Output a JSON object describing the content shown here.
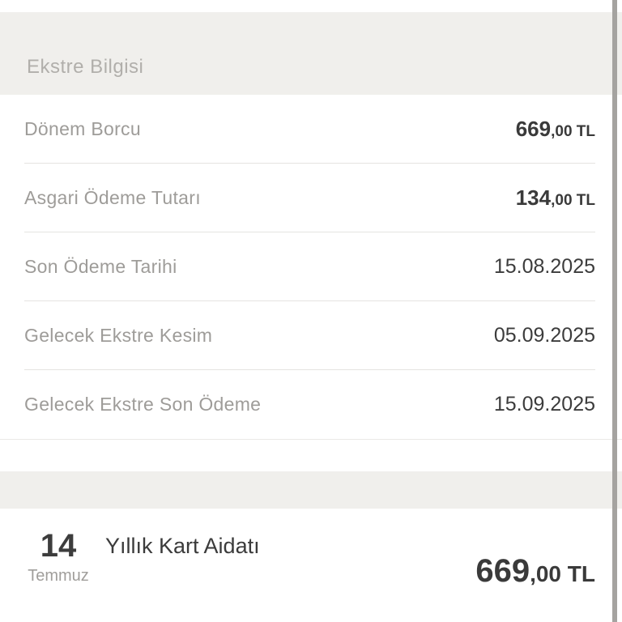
{
  "page": {
    "title": "Ekstre Bilgisi"
  },
  "statement": {
    "rows": [
      {
        "label": "Dönem Borcu",
        "value_main": "669",
        "value_suffix": ",00 TL"
      },
      {
        "label": "Asgari Ödeme Tutarı",
        "value_main": "134",
        "value_suffix": ",00 TL"
      },
      {
        "label": "Son Ödeme Tarihi",
        "value": "15.08.2025"
      },
      {
        "label": "Gelecek Ekstre Kesim",
        "value": "05.09.2025"
      },
      {
        "label": "Gelecek Ekstre Son Ödeme",
        "value": "15.09.2025"
      }
    ]
  },
  "transaction": {
    "day": "14",
    "month": "Temmuz",
    "description": "Yıllık Kart Aidatı",
    "amount_main": "669",
    "amount_suffix": ",00 TL"
  },
  "colors": {
    "section_band": "#f0efec",
    "label_text": "#9e9c99",
    "title_text": "#b1afab",
    "dark_text": "#3c3c3c",
    "divider": "#e5e4e1",
    "scrollbar": "#a5a3a0"
  }
}
